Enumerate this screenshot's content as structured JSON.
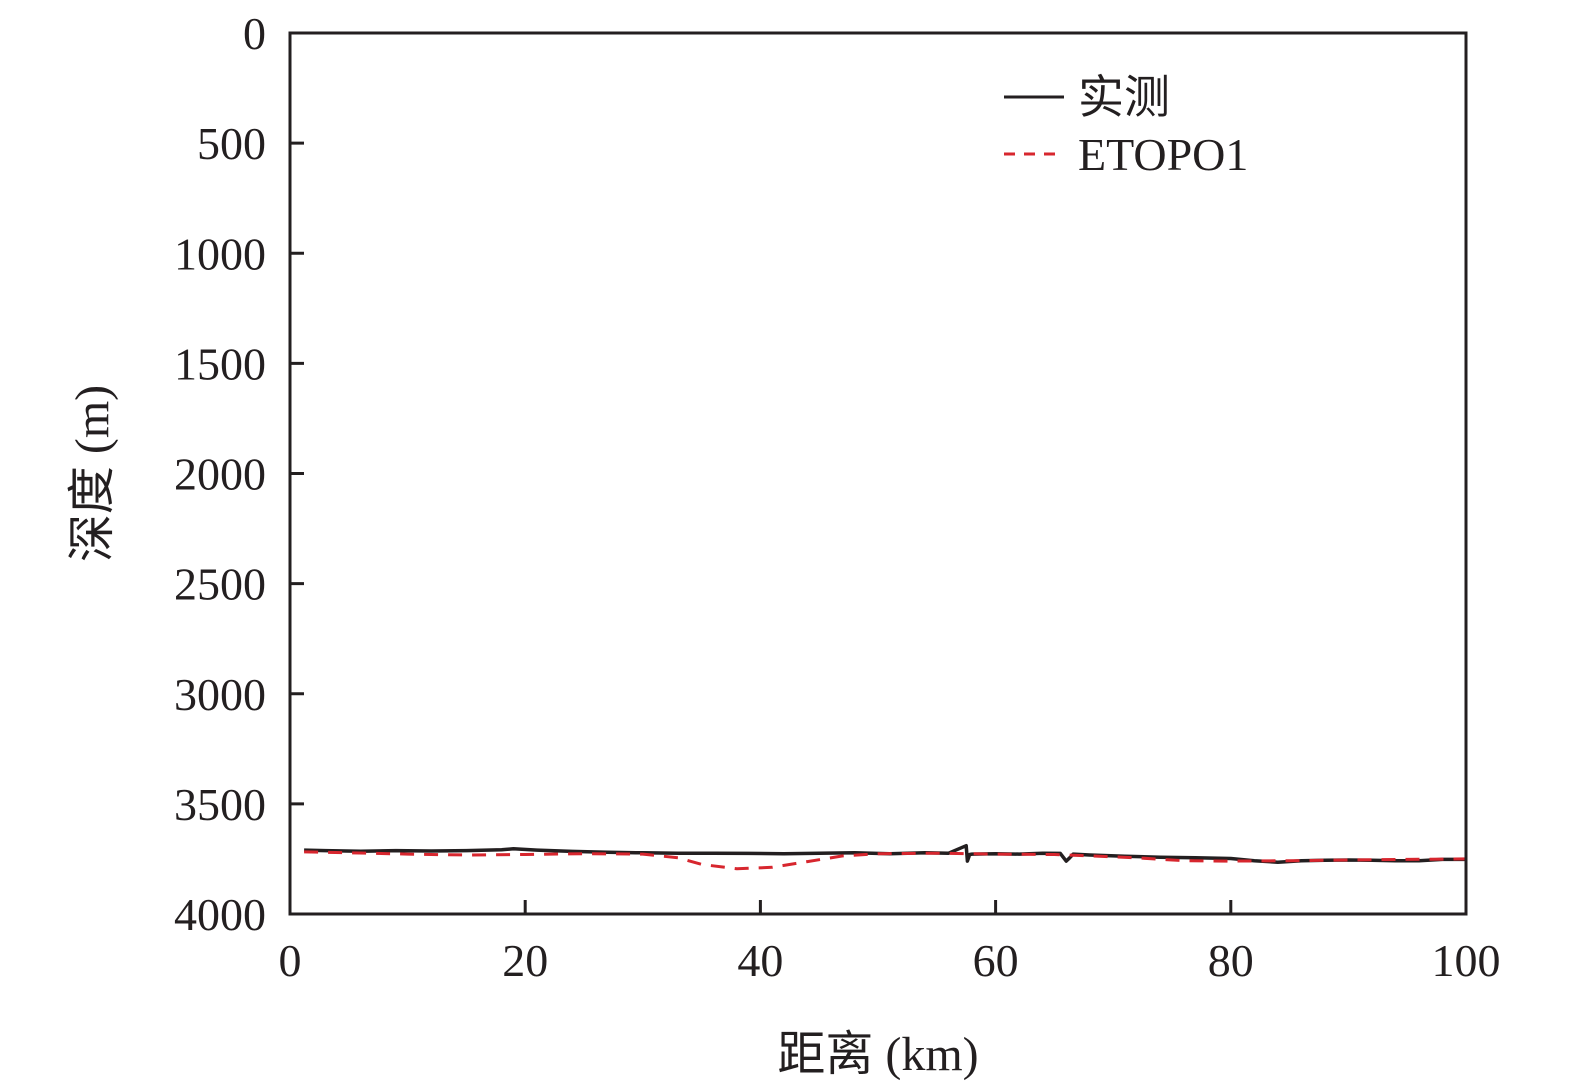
{
  "chart_data": {
    "type": "line",
    "xlabel": "距离 (km)",
    "ylabel": "深度 (m)",
    "xlim": [
      0,
      100
    ],
    "ylim": [
      0,
      4000
    ],
    "y_inverted": true,
    "xticks": [
      0,
      20,
      40,
      60,
      80,
      100
    ],
    "yticks": [
      0,
      500,
      1000,
      1500,
      2000,
      2500,
      3000,
      3500,
      4000
    ],
    "grid": false,
    "legend_position": "top-right",
    "series": [
      {
        "name": "实测",
        "color": "#231f20",
        "style": "solid",
        "x": [
          1.2,
          3,
          6,
          9,
          12,
          15,
          18,
          19,
          21,
          24,
          27,
          30,
          33,
          36,
          39,
          42,
          45,
          48,
          51,
          54,
          56,
          57.5,
          57.6,
          57.8,
          58,
          60,
          62,
          64,
          65.5,
          66,
          66.3,
          66.6,
          68,
          71,
          74,
          77,
          80,
          82,
          84,
          86,
          88,
          90,
          92,
          94,
          96,
          98,
          100
        ],
        "y": [
          3710,
          3712,
          3715,
          3712,
          3714,
          3712,
          3708,
          3704,
          3710,
          3716,
          3720,
          3722,
          3724,
          3724,
          3725,
          3726,
          3724,
          3722,
          3726,
          3722,
          3724,
          3690,
          3760,
          3730,
          3728,
          3726,
          3728,
          3724,
          3725,
          3760,
          3745,
          3728,
          3732,
          3738,
          3742,
          3745,
          3748,
          3758,
          3765,
          3758,
          3756,
          3755,
          3756,
          3758,
          3758,
          3752,
          3752
        ]
      },
      {
        "name": "ETOPO1",
        "color": "#d7262e",
        "style": "dashed",
        "x": [
          1.2,
          5,
          10,
          15,
          20,
          25,
          30,
          33,
          35,
          38,
          41,
          44,
          47,
          50,
          55,
          60,
          65,
          68,
          72,
          76,
          80,
          85,
          90,
          95,
          100
        ],
        "y": [
          3718,
          3722,
          3728,
          3732,
          3730,
          3726,
          3728,
          3745,
          3775,
          3795,
          3788,
          3762,
          3736,
          3726,
          3724,
          3728,
          3730,
          3736,
          3745,
          3758,
          3760,
          3758,
          3755,
          3752,
          3750
        ]
      }
    ]
  }
}
